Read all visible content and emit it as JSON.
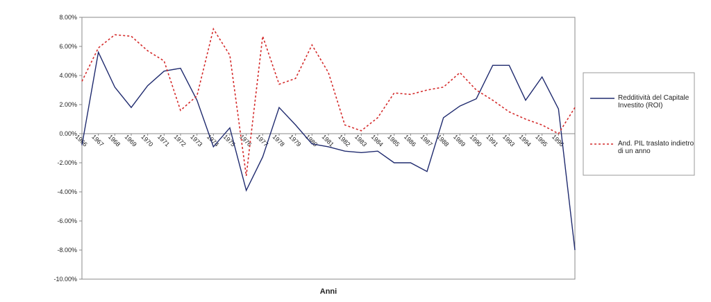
{
  "chart_data": {
    "type": "line",
    "xlabel": "Anni",
    "categories": [
      "1966",
      "1967",
      "1968",
      "1969",
      "1970",
      "1971",
      "1972",
      "1973",
      "1974",
      "1975",
      "1976",
      "1977",
      "1978",
      "1979",
      "1980",
      "1981",
      "1982",
      "1983",
      "1984",
      "1985",
      "1986",
      "1987",
      "1988",
      "1989",
      "1990",
      "1991",
      "1993",
      "1994",
      "1995",
      "1996",
      null
    ],
    "series": [
      {
        "name": "Redditività del Capitale Investito (ROI)",
        "color": "#1f2a6e",
        "dash": false,
        "values": [
          -0.8,
          5.6,
          3.2,
          1.8,
          3.3,
          4.3,
          4.5,
          2.3,
          -0.9,
          0.4,
          -3.9,
          -1.6,
          1.8,
          0.6,
          -0.7,
          -0.9,
          -1.2,
          -1.3,
          -1.2,
          -2.0,
          -2.0,
          -2.6,
          1.1,
          1.9,
          2.4,
          4.7,
          4.7,
          2.3,
          3.9,
          1.7,
          -8.0
        ]
      },
      {
        "name": "And. PIL traslato indietro di un anno",
        "color": "#d42a2a",
        "dash": true,
        "values": [
          3.6,
          5.9,
          6.8,
          6.7,
          5.7,
          5.0,
          1.6,
          2.6,
          7.2,
          5.4,
          -2.9,
          6.7,
          3.4,
          3.8,
          6.1,
          4.2,
          0.6,
          0.2,
          1.1,
          2.8,
          2.7,
          3.0,
          3.2,
          4.2,
          3.0,
          2.3,
          1.5,
          1.0,
          0.6,
          0.0,
          1.8
        ]
      }
    ],
    "ylim": [
      -10,
      8
    ],
    "yticks": [
      {
        "value": 8,
        "label": "8.00%"
      },
      {
        "value": 6,
        "label": "6.00%"
      },
      {
        "value": 4,
        "label": "4.00%"
      },
      {
        "value": 2,
        "label": "2.00%"
      },
      {
        "value": 0,
        "label": "0.00%"
      },
      {
        "value": -2,
        "label": "-2.00%"
      },
      {
        "value": -4,
        "label": "-4.00%"
      },
      {
        "value": -6,
        "label": "-6.00%"
      },
      {
        "value": -8,
        "label": "-8.00%"
      },
      {
        "value": -10,
        "label": "-10.00%"
      }
    ],
    "grid": false,
    "legend": "right"
  }
}
